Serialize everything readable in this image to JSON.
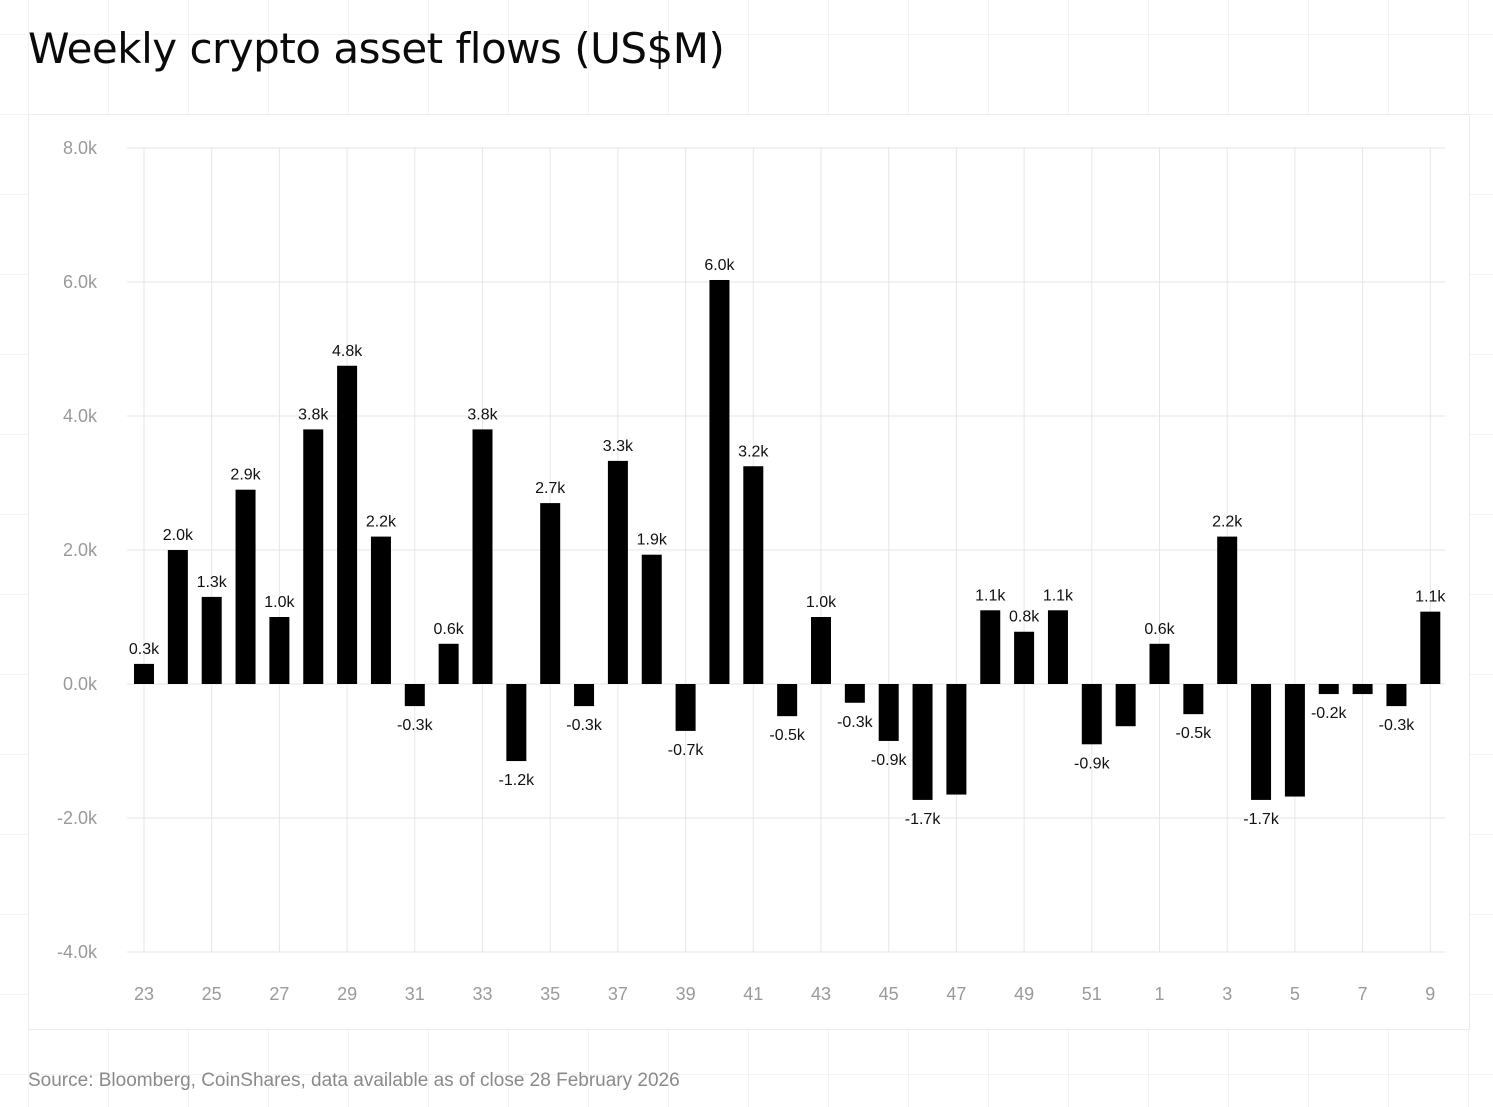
{
  "title": "Weekly crypto asset flows (US$M)",
  "source": "Source: Bloomberg, CoinShares, data available as of close 28 February 2026",
  "chart_data": {
    "type": "bar",
    "title": "Weekly crypto asset flows (US$M)",
    "xlabel": "",
    "ylabel": "",
    "ylim": [
      -4000,
      8000
    ],
    "yticks": [
      8000,
      6000,
      4000,
      2000,
      0,
      -2000,
      -4000
    ],
    "ytick_labels": [
      "8.0k",
      "6.0k",
      "4.0k",
      "2.0k",
      "0.0k",
      "-2.0k",
      "-4.0k"
    ],
    "categories": [
      "23",
      "24",
      "25",
      "26",
      "27",
      "28",
      "29",
      "30",
      "31",
      "32",
      "33",
      "34",
      "35",
      "36",
      "37",
      "38",
      "39",
      "40",
      "41",
      "42",
      "43",
      "44",
      "45",
      "46",
      "47",
      "48",
      "49",
      "50",
      "51",
      "52",
      "1",
      "2",
      "3",
      "4",
      "5",
      "6",
      "7",
      "8",
      "9"
    ],
    "xtick_labels": [
      "23",
      "25",
      "27",
      "29",
      "31",
      "33",
      "35",
      "37",
      "39",
      "41",
      "43",
      "45",
      "47",
      "49",
      "51",
      "1",
      "3",
      "5",
      "7",
      "9"
    ],
    "values": [
      300,
      2000,
      1300,
      2900,
      1000,
      3800,
      4750,
      2200,
      -330,
      600,
      3800,
      -1150,
      2700,
      -330,
      3330,
      1930,
      -700,
      6030,
      3250,
      -480,
      1000,
      -280,
      -850,
      -1730,
      -1650,
      1100,
      780,
      1100,
      -900,
      -630,
      600,
      -450,
      2200,
      -1730,
      -1680,
      -150,
      -150,
      -330,
      1080
    ],
    "data_labels": [
      "0.3k",
      "2.0k",
      "1.3k",
      "2.9k",
      "1.0k",
      "3.8k",
      "4.8k",
      "2.2k",
      "-0.3k",
      "0.6k",
      "3.8k",
      "-1.2k",
      "2.7k",
      "-0.3k",
      "3.3k",
      "1.9k",
      "-0.7k",
      "6.0k",
      "3.2k",
      "-0.5k",
      "1.0k",
      "-0.3k",
      "-0.9k",
      "-1.7k",
      "",
      "1.1k",
      "0.8k",
      "1.1k",
      "-0.9k",
      "",
      "0.6k",
      "-0.5k",
      "2.2k",
      "-1.7k",
      "",
      "-0.2k",
      "",
      "-0.3k",
      "1.1k"
    ],
    "grid": true,
    "legend": "none",
    "colors": {
      "bar": "#000000",
      "grid": "#e6e6e6",
      "tick_text": "#9a9a9a",
      "label_text": "#111111"
    }
  }
}
